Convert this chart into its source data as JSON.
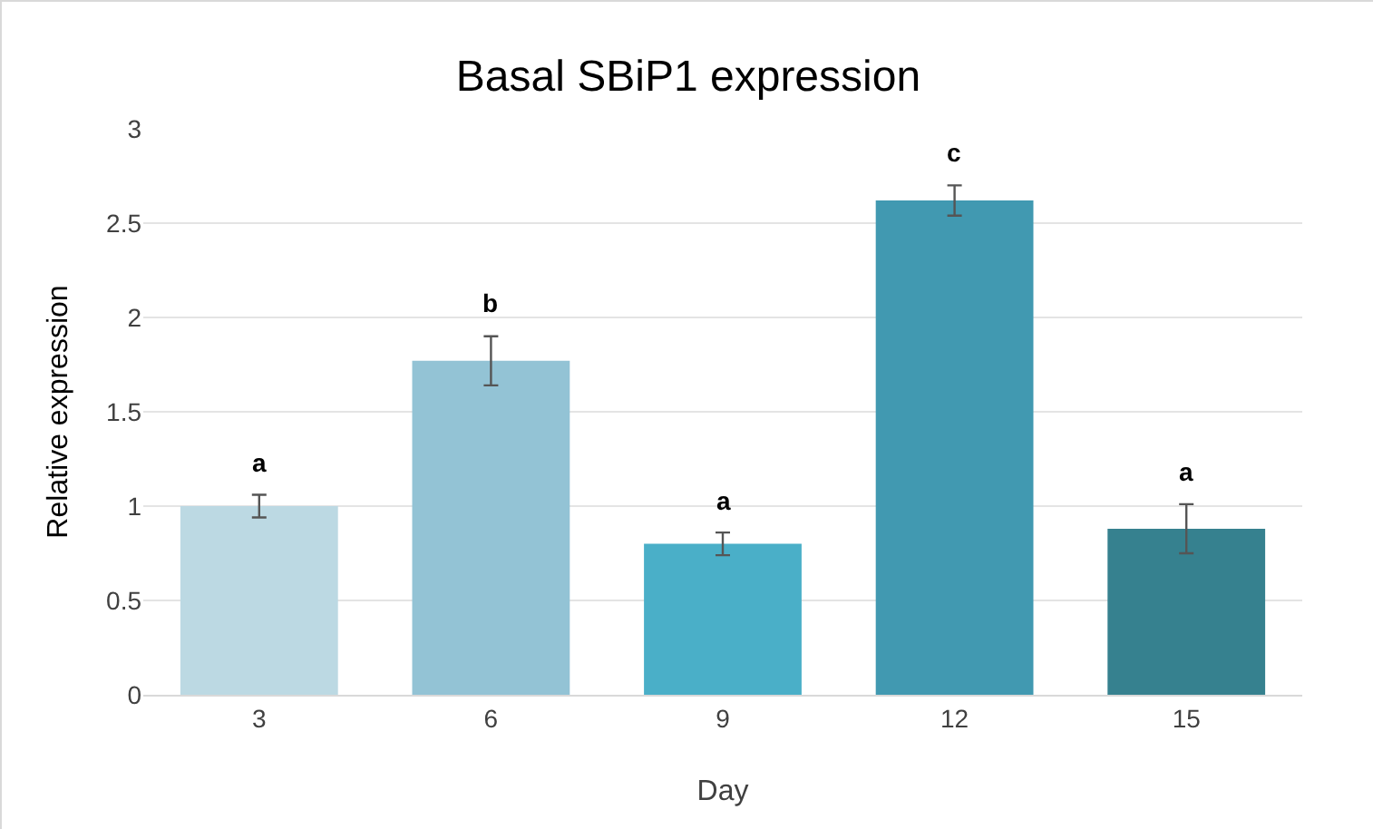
{
  "chart_data": {
    "type": "bar",
    "title": "Basal SBiP1 expression",
    "xlabel": "Day",
    "ylabel": "Relative expression",
    "categories": [
      "3",
      "6",
      "9",
      "12",
      "15"
    ],
    "values": [
      1.0,
      1.77,
      0.8,
      2.62,
      0.88
    ],
    "errors": [
      0.06,
      0.13,
      0.06,
      0.08,
      0.13
    ],
    "colors": [
      "#bcd9e3",
      "#93c3d5",
      "#4aafc8",
      "#4199b1",
      "#36818f"
    ],
    "ylim": [
      0,
      3
    ],
    "yticks": [
      0,
      0.5,
      1,
      1.5,
      2,
      2.5,
      3
    ],
    "grid": "y",
    "annotations": [
      "a",
      "b",
      "a",
      "c",
      "a"
    ]
  }
}
